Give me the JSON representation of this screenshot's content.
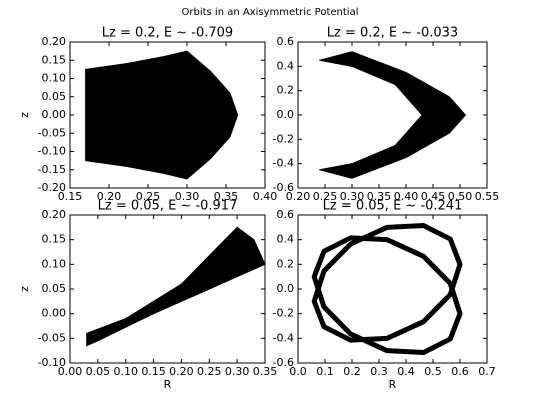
{
  "title": "Orbits in an Axisymmetric Potential",
  "chart_data": [
    {
      "type": "line",
      "title": "Lz = 0.2, E ~ -0.709",
      "y_label": "z",
      "xlim": [
        0.15,
        0.4
      ],
      "ylim": [
        -0.2,
        0.2
      ],
      "xticks": [
        0.15,
        {
          "value": 0.2,
          "label": "0.20"
        },
        0.25,
        {
          "value": 0.3,
          "label": "0.30"
        },
        0.35,
        {
          "value": 0.4,
          "label": "0.40"
        }
      ],
      "yticks": [
        {
          "value": -0.2,
          "label": "-0.20"
        },
        -0.15,
        {
          "value": -0.1,
          "label": "-0.10"
        },
        -0.05,
        {
          "value": 0,
          "label": "0.00"
        },
        0.05,
        {
          "value": 0.1,
          "label": "0.10"
        },
        0.15,
        {
          "value": 0.2,
          "label": "0.20"
        }
      ],
      "series": [
        {
          "color": "#000000",
          "fill": true,
          "x": [
            0.17,
            0.22,
            0.27,
            0.3,
            0.33,
            0.355,
            0.365,
            0.355,
            0.33,
            0.3,
            0.27,
            0.22,
            0.17
          ],
          "y": [
            0.125,
            0.14,
            0.16,
            0.175,
            0.12,
            0.06,
            0,
            -0.06,
            -0.12,
            -0.175,
            -0.16,
            -0.14,
            -0.125
          ]
        }
      ]
    },
    {
      "type": "line",
      "title": "Lz = 0.2, E ~ -0.033",
      "xlim": [
        0.2,
        0.55
      ],
      "ylim": [
        -0.6,
        0.6
      ],
      "xticks": [
        {
          "value": 0.2,
          "label": "0.20"
        },
        0.25,
        {
          "value": 0.3,
          "label": "0.30"
        },
        0.35,
        {
          "value": 0.4,
          "label": "0.40"
        },
        0.45,
        {
          "value": 0.5,
          "label": "0.50"
        },
        0.55
      ],
      "yticks": [
        -0.6,
        -0.4,
        -0.2,
        {
          "value": 0,
          "label": "0.0"
        },
        0.2,
        0.4,
        0.6
      ],
      "series": [
        {
          "color": "#000000",
          "fill": true,
          "x": [
            0.24,
            0.3,
            0.4,
            0.48,
            0.51,
            0.48,
            0.4,
            0.3,
            0.24,
            0.3,
            0.38,
            0.43,
            0.38,
            0.3
          ],
          "y": [
            0.45,
            0.52,
            0.35,
            0.15,
            0,
            -0.15,
            -0.35,
            -0.52,
            -0.45,
            -0.4,
            -0.25,
            0,
            0.25,
            0.4
          ]
        }
      ]
    },
    {
      "type": "line",
      "title": "Lz = 0.05, E ~ -0.917",
      "x_label": "R",
      "y_label": "z",
      "xlim": [
        0,
        0.35
      ],
      "ylim": [
        -0.1,
        0.2
      ],
      "xticks": [
        {
          "value": 0,
          "label": "0.00"
        },
        0.05,
        {
          "value": 0.1,
          "label": "0.10"
        },
        0.15,
        {
          "value": 0.2,
          "label": "0.20"
        },
        0.25,
        {
          "value": 0.3,
          "label": "0.30"
        },
        0.35
      ],
      "yticks": [
        {
          "value": -0.1,
          "label": "-0.10"
        },
        -0.05,
        {
          "value": 0,
          "label": "0.00"
        },
        0.05,
        {
          "value": 0.1,
          "label": "0.10"
        },
        0.15,
        {
          "value": 0.2,
          "label": "0.20"
        }
      ],
      "series": [
        {
          "color": "#000000",
          "fill": true,
          "x": [
            0.03,
            0.1,
            0.2,
            0.3,
            0.33,
            0.35,
            0.25,
            0.15,
            0.05,
            0.03
          ],
          "y": [
            -0.04,
            -0.01,
            0.06,
            0.175,
            0.15,
            0.1,
            0.05,
            0,
            -0.055,
            -0.065
          ]
        }
      ]
    },
    {
      "type": "line",
      "title": "Lz = 0.05, E ~ -0.241",
      "x_label": "R",
      "xlim": [
        0,
        0.7
      ],
      "ylim": [
        -0.6,
        0.6
      ],
      "xticks": [
        {
          "value": 0,
          "label": "0.0"
        },
        0.1,
        0.2,
        0.3,
        0.4,
        0.5,
        0.6,
        0.7
      ],
      "yticks": [
        -0.6,
        -0.4,
        -0.2,
        {
          "value": 0,
          "label": "0.0"
        },
        0.2,
        0.4,
        0.6
      ],
      "series": [
        {
          "color": "#000000",
          "fill": false,
          "x": [
            0.6,
            0.564,
            0.465,
            0.33,
            0.195,
            0.096,
            0.06,
            0.096,
            0.195,
            0.33,
            0.465,
            0.564
          ],
          "y": [
            0.2,
            0.405,
            0.515,
            0.5,
            0.365,
            0.145,
            -0.1,
            -0.305,
            -0.415,
            -0.4,
            -0.265,
            -0.045
          ]
        },
        {
          "color": "#000000",
          "fill": false,
          "x": [
            0.6,
            0.564,
            0.465,
            0.33,
            0.195,
            0.096,
            0.06,
            0.096,
            0.195,
            0.33,
            0.465,
            0.564
          ],
          "y": [
            -0.2,
            0.045,
            0.265,
            0.4,
            0.415,
            0.305,
            0.1,
            -0.145,
            -0.365,
            -0.5,
            -0.515,
            -0.405
          ]
        }
      ]
    }
  ]
}
